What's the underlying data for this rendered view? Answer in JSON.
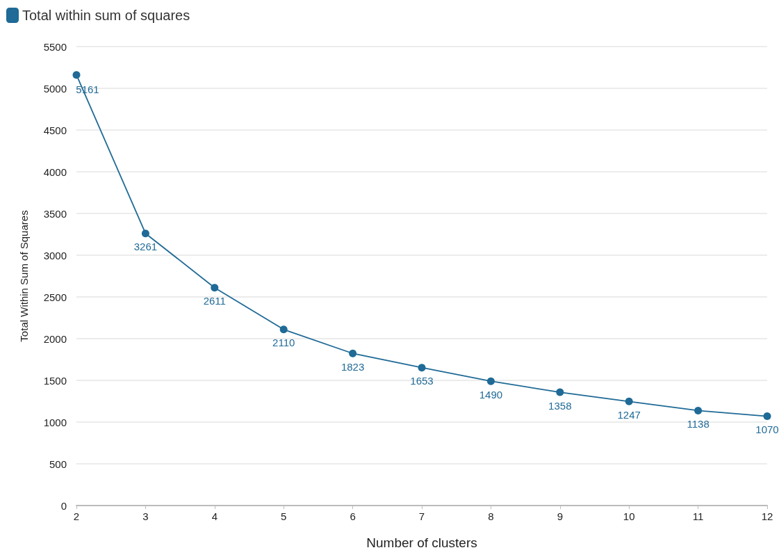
{
  "chart_data": {
    "type": "line",
    "xlabel": "Number of clusters",
    "ylabel": "Total Within Sum of Squares",
    "x": [
      2,
      3,
      4,
      5,
      6,
      7,
      8,
      9,
      10,
      11,
      12
    ],
    "series": [
      {
        "name": "Total within sum of squares",
        "color": "#1f6a96",
        "values": [
          5161,
          3261,
          2611,
          2110,
          1823,
          1653,
          1490,
          1358,
          1247,
          1138,
          1070
        ]
      }
    ],
    "xlim": [
      2,
      12
    ],
    "xticks": [
      2,
      3,
      4,
      5,
      6,
      7,
      8,
      9,
      10,
      11,
      12
    ],
    "ylim": [
      0,
      5500
    ],
    "yticks": [
      0,
      500,
      1000,
      1500,
      2000,
      2500,
      3000,
      3500,
      4000,
      4500,
      5000,
      5500
    ],
    "grid": "y",
    "legend": "top left",
    "marker": "circle",
    "line_style": "solid",
    "data_labels": true
  }
}
